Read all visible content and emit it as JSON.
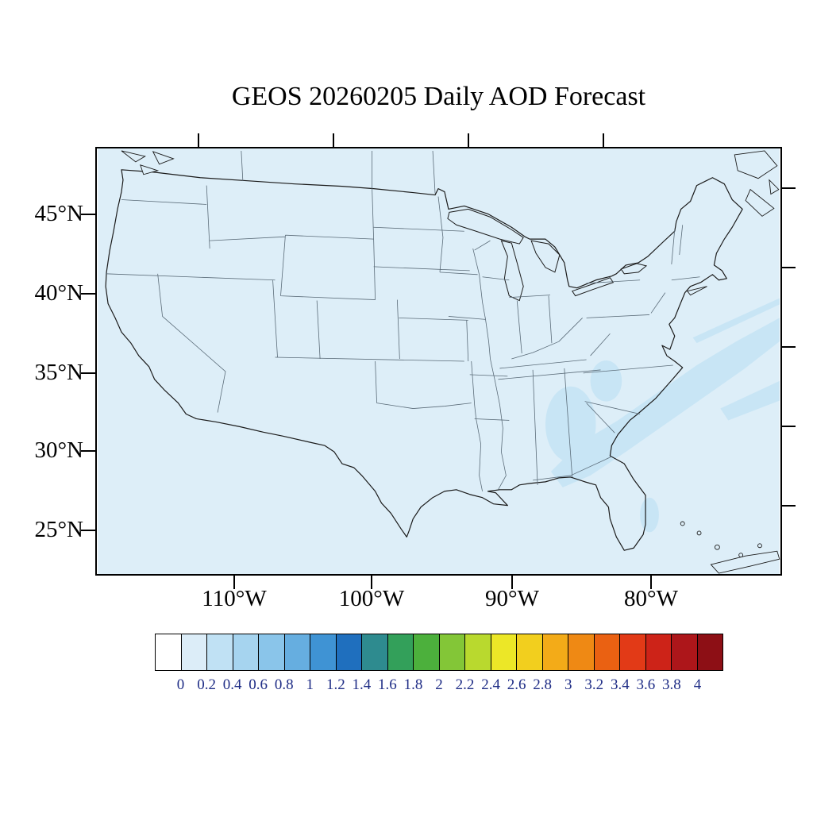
{
  "title": "GEOS 20260205 Daily AOD Forecast",
  "map": {
    "lat_labels": [
      "45°N",
      "40°N",
      "35°N",
      "30°N",
      "25°N"
    ],
    "lon_labels": [
      "110°W",
      "100°W",
      "90°W",
      "80°W"
    ],
    "ocean_land_color": "#ddeef8",
    "aod_patch_color": "#c8e5f5",
    "coast_color": "#1a1a1a",
    "state_line_color": "#5a6b78",
    "frame_color": "#000000"
  },
  "colorbar": {
    "tick_labels": [
      "0",
      "0.2",
      "0.4",
      "0.6",
      "0.8",
      "1",
      "1.2",
      "1.4",
      "1.6",
      "1.8",
      "2",
      "2.2",
      "2.4",
      "2.6",
      "2.8",
      "3",
      "3.2",
      "3.4",
      "3.6",
      "3.8",
      "4"
    ],
    "colors": [
      "#ffffff",
      "#dcedf8",
      "#c0e1f4",
      "#a6d4ef",
      "#8ac5ea",
      "#66aee0",
      "#3f93d4",
      "#1f6fbe",
      "#2e8b8f",
      "#33a05a",
      "#4cb03c",
      "#83c637",
      "#b9d92e",
      "#ece727",
      "#f2cf1e",
      "#f3ab18",
      "#ef8914",
      "#ea6112",
      "#e23a17",
      "#cd2318",
      "#ad161a",
      "#8d0f15"
    ],
    "label_color": "#1f2d86"
  }
}
